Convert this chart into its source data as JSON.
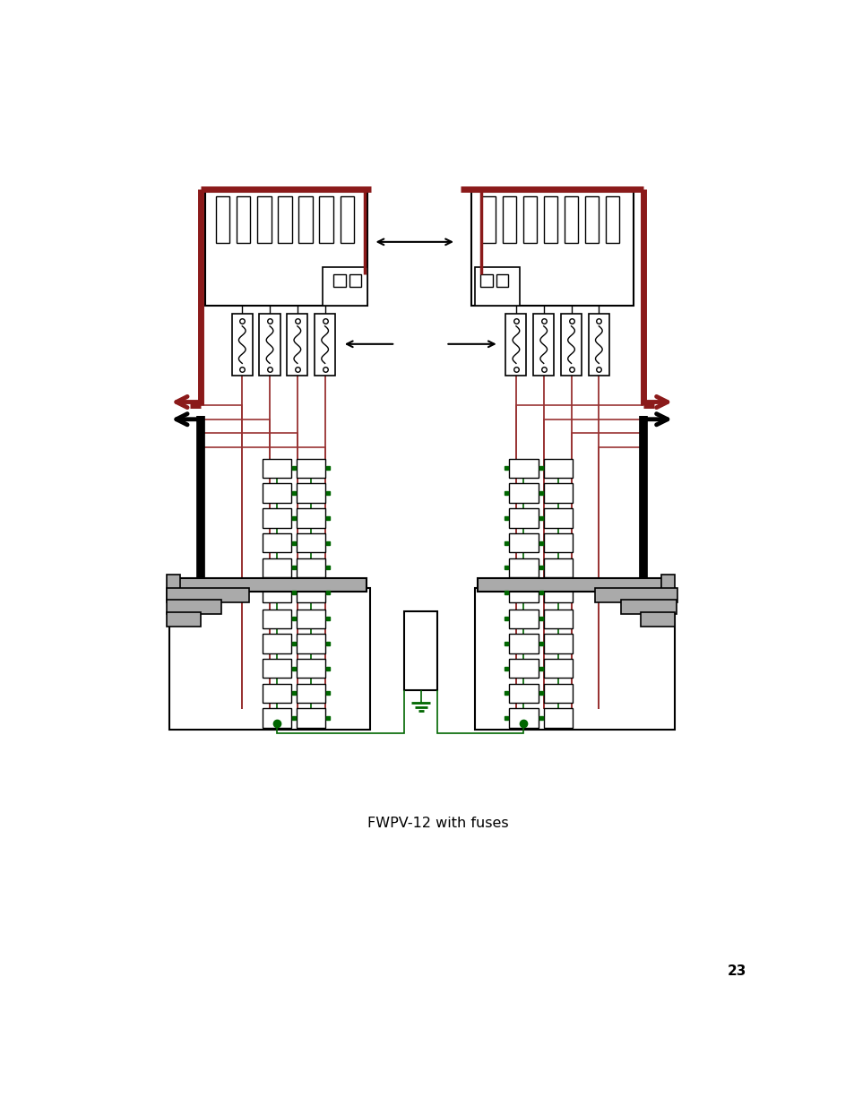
{
  "title": "FWPV-12 with fuses",
  "page_number": "23",
  "bg_color": "#ffffff",
  "dark_red": "#8B1A1A",
  "red": "#993333",
  "green": "#006600",
  "black": "#000000",
  "gray": "#aaaaaa"
}
